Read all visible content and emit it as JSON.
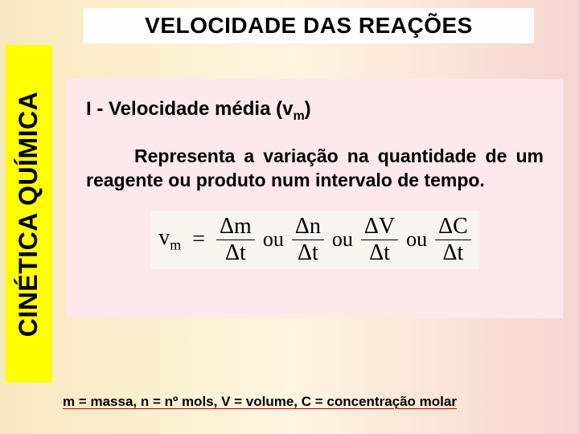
{
  "sidebar": {
    "label": "CINÉTICA QUÍMICA"
  },
  "title": {
    "text": "VELOCIDADE DAS REAÇÕES"
  },
  "content": {
    "heading_prefix": "I - Velocidade média (v",
    "heading_sub": "m",
    "heading_suffix": ")",
    "body": "Representa a variação na quantidade de um reagente ou produto num intervalo de tempo.",
    "formula": {
      "lhs": "v",
      "lhs_sub": "m",
      "terms": [
        {
          "num": "Δm",
          "den": "Δt"
        },
        {
          "num": "Δn",
          "den": "Δt"
        },
        {
          "num": "ΔV",
          "den": "Δt"
        },
        {
          "num": "ΔC",
          "den": "Δt"
        }
      ],
      "sep": "ou"
    }
  },
  "footnote": {
    "text": "m = massa, n = nº mols, V = volume, C = concentração molar"
  },
  "style": {
    "background_gradient": [
      "#f8e8c0",
      "#fff5e0",
      "#f5d5d0"
    ],
    "sidebar_bg": "#ffff00",
    "title_bg": "#fefefe",
    "content_bg": "#fde8eb",
    "text_color": "#000000",
    "underline_color": "#c00000",
    "title_fontsize": 28,
    "sidebar_fontsize": 32,
    "heading_fontsize": 24,
    "body_fontsize": 23,
    "formula_fontsize": 28,
    "footnote_fontsize": 17
  }
}
